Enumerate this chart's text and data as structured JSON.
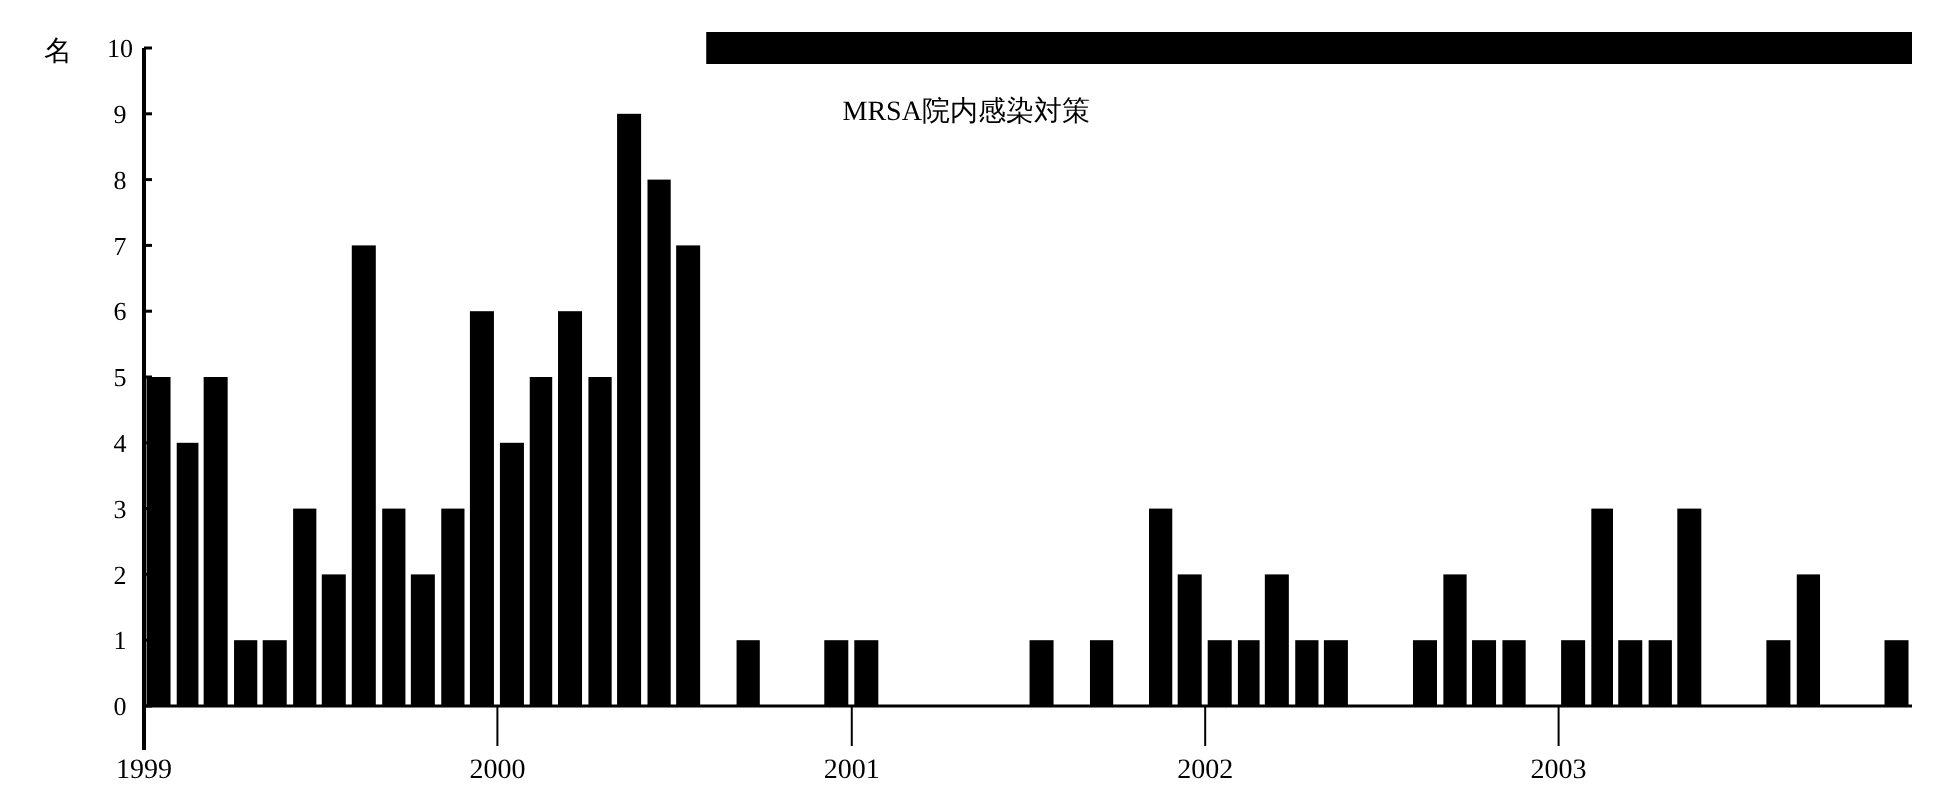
{
  "chart_data": {
    "type": "bar",
    "ylabel": "名",
    "x": [
      "1999-01-16",
      "1999-02-15",
      "1999-03-16",
      "1999-04-16",
      "1999-05-16",
      "1999-06-16",
      "1999-07-16",
      "1999-08-16",
      "1999-09-16",
      "1999-10-16",
      "1999-11-16",
      "1999-12-16",
      "2000-01-16",
      "2000-02-15",
      "2000-03-16",
      "2000-04-16",
      "2000-05-16",
      "2000-06-16",
      "2000-07-16",
      "2000-08-16",
      "2000-09-16",
      "2000-10-16",
      "2000-11-16",
      "2000-12-16",
      "2001-01-16",
      "2001-02-15",
      "2001-03-16",
      "2001-04-16",
      "2001-05-16",
      "2001-06-16",
      "2001-07-16",
      "2001-08-16",
      "2001-09-16",
      "2001-10-16",
      "2001-11-16",
      "2001-12-16",
      "2002-01-16",
      "2002-02-15",
      "2002-03-16",
      "2002-04-16",
      "2002-05-16",
      "2002-06-16",
      "2002-07-16",
      "2002-08-16",
      "2002-09-16",
      "2002-10-16",
      "2002-11-16",
      "2002-12-16",
      "2003-01-16",
      "2003-02-15",
      "2003-03-16",
      "2003-04-16",
      "2003-05-16",
      "2003-06-16",
      "2003-07-16",
      "2003-08-16",
      "2003-09-16",
      "2003-10-16",
      "2003-11-16",
      "2003-12-16"
    ],
    "values": [
      5,
      4,
      5,
      1,
      1,
      3,
      2,
      7,
      3,
      2,
      3,
      6,
      4,
      5,
      6,
      5,
      9,
      8,
      7,
      0,
      1,
      0,
      0,
      1,
      1,
      0,
      0,
      0,
      0,
      0,
      1,
      0,
      1,
      0,
      3,
      2,
      1,
      1,
      2,
      1,
      1,
      0,
      0,
      1,
      2,
      1,
      1,
      0,
      1,
      3,
      1,
      1,
      3,
      0,
      0,
      1,
      2,
      0,
      0,
      1
    ],
    "color": "#000000",
    "xlim": [
      "1999-01",
      "2004-01"
    ],
    "xticks": [
      {
        "value": "1999-01",
        "label": "1999"
      },
      {
        "value": "2000-01",
        "label": "2000"
      },
      {
        "value": "2001-01",
        "label": "2001"
      },
      {
        "value": "2002-01",
        "label": "2002"
      },
      {
        "value": "2003-01",
        "label": "2003"
      }
    ],
    "ylim": [
      0,
      10
    ],
    "yticks": [
      0,
      1,
      2,
      3,
      4,
      5,
      6,
      7,
      8,
      9,
      10
    ],
    "annotations": [
      "MRSA院内感染対策"
    ],
    "grid": false
  }
}
